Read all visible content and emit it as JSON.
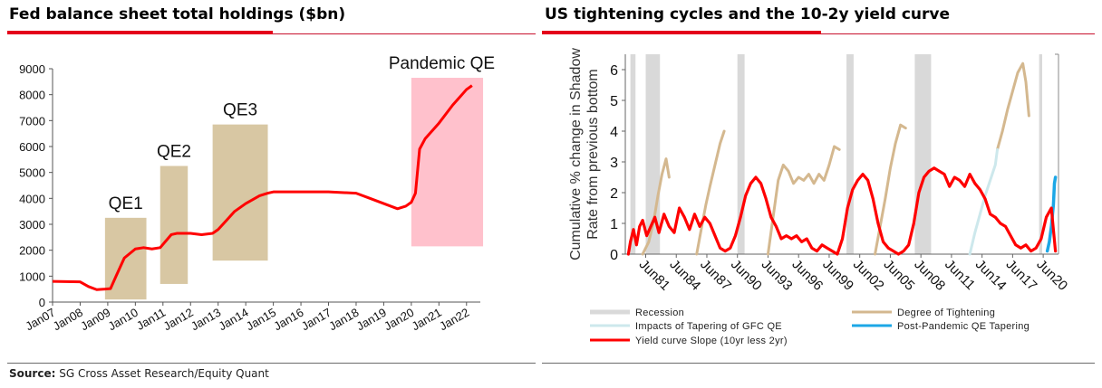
{
  "left_panel": {
    "title": "Fed balance sheet total holdings ($bn)"
  },
  "right_panel": {
    "title": "US tightening cycles and the 10-2y yield curve"
  },
  "source": {
    "label": "Source:",
    "text": "SG Cross Asset Research/Equity Quant"
  },
  "colors": {
    "accent": "#e4001b",
    "line_red": "#ff0000",
    "qe_box": "#d8c7a3",
    "pandemic_box": "#ffc1cc",
    "recession": "#d9d9d9",
    "tightening": "#d4b88f",
    "gfc_taper": "#cde8ec",
    "post_taper": "#1ca7e6"
  },
  "chart_data": [
    {
      "type": "line",
      "title": "Fed balance sheet total holdings ($bn)",
      "xlabel": "",
      "ylabel": "",
      "xlim": [
        2007,
        2022.5
      ],
      "ylim": [
        0,
        9000
      ],
      "yticks": [
        0,
        1000,
        2000,
        3000,
        4000,
        5000,
        6000,
        7000,
        8000,
        9000
      ],
      "ytick_labels": [
        "0",
        "1000",
        "2000",
        "3000",
        "4000",
        "5000",
        "6000",
        "7000",
        "8000",
        "9000"
      ],
      "xticks": [
        2007,
        2008,
        2009,
        2010,
        2011,
        2012,
        2013,
        2014,
        2015,
        2016,
        2017,
        2018,
        2019,
        2020,
        2021,
        2022
      ],
      "xtick_labels": [
        "Jan07",
        "Jan08",
        "Jan09",
        "Jan10",
        "Jan11",
        "Jan12",
        "Jan13",
        "Jan14",
        "Jan15",
        "Jan16",
        "Jan17",
        "Jan18",
        "Jan19",
        "Jan20",
        "Jan21",
        "Jan22"
      ],
      "series": [
        {
          "name": "Fed total holdings",
          "x": [
            2007,
            2008.0,
            2008.3,
            2008.6,
            2008.9,
            2009.1,
            2009.3,
            2009.6,
            2010.0,
            2010.3,
            2010.6,
            2010.9,
            2011.1,
            2011.3,
            2011.5,
            2011.7,
            2012.0,
            2012.4,
            2012.8,
            2013.0,
            2013.3,
            2013.6,
            2014.0,
            2014.5,
            2014.8,
            2015.0,
            2016.0,
            2017.0,
            2018.0,
            2018.5,
            2019.0,
            2019.5,
            2019.8,
            2020.0,
            2020.15,
            2020.3,
            2020.5,
            2021.0,
            2021.5,
            2022.0,
            2022.2
          ],
          "values": [
            800,
            780,
            600,
            480,
            500,
            520,
            1000,
            1700,
            2050,
            2100,
            2050,
            2100,
            2350,
            2600,
            2650,
            2650,
            2650,
            2600,
            2650,
            2800,
            3150,
            3500,
            3800,
            4100,
            4200,
            4250,
            4250,
            4250,
            4200,
            4000,
            3800,
            3600,
            3700,
            3850,
            4200,
            5900,
            6300,
            6900,
            7600,
            8200,
            8350
          ]
        }
      ],
      "annotations": [
        {
          "label": "QE1",
          "x_range": [
            2008.9,
            2010.4
          ],
          "y_range": [
            100,
            3250
          ]
        },
        {
          "label": "QE2",
          "x_range": [
            2010.9,
            2011.9
          ],
          "y_range": [
            700,
            5250
          ]
        },
        {
          "label": "QE3",
          "x_range": [
            2012.8,
            2014.8
          ],
          "y_range": [
            1600,
            6850
          ]
        },
        {
          "label": "Pandemic QE",
          "x_range": [
            2020.0,
            2022.6
          ],
          "y_range": [
            2150,
            8650
          ]
        }
      ]
    },
    {
      "type": "line",
      "title": "US tightening cycles and the 10-2y yield curve",
      "xlabel": "",
      "ylabel": "Cumulative % change in Shadow Rate from previous bottom",
      "xlim": [
        1979.5,
        2022.0
      ],
      "ylim": [
        0,
        6.5
      ],
      "yticks": [
        0,
        1,
        2,
        3,
        4,
        5,
        6
      ],
      "ytick_labels": [
        "0",
        "1",
        "2",
        "3",
        "4",
        "5",
        "6"
      ],
      "xticks": [
        1981.5,
        1984.5,
        1987.5,
        1990.5,
        1993.5,
        1996.5,
        1999.5,
        2002.5,
        2005.5,
        2008.5,
        2011.5,
        2014.5,
        2017.5,
        2020.5
      ],
      "xtick_labels": [
        "Jun81",
        "Jun84",
        "Jun87",
        "Jun90",
        "Jun93",
        "Jun96",
        "Jun99",
        "Jun02",
        "Jun05",
        "Jun08",
        "Jun11",
        "Jun14",
        "Jun17",
        "Jun20"
      ],
      "recessions": [
        [
          1980.0,
          1980.5
        ],
        [
          1981.5,
          1982.9
        ],
        [
          1990.5,
          1991.2
        ],
        [
          2001.2,
          2001.9
        ],
        [
          2007.9,
          2009.5
        ],
        [
          2020.1,
          2020.4
        ]
      ],
      "series": [
        {
          "name": "Degree of Tightening",
          "color": "#d4b88f",
          "segments": [
            {
              "x": [
                1981.2,
                1981.8,
                1982.3,
                1982.7,
                1983.1,
                1983.5,
                1983.8
              ],
              "values": [
                0.0,
                0.4,
                1.1,
                1.9,
                2.6,
                3.1,
                2.5
              ]
            },
            {
              "x": [
                1986.5,
                1987.0,
                1987.4,
                1987.8,
                1988.3,
                1988.8,
                1989.2
              ],
              "values": [
                0.0,
                0.9,
                1.6,
                2.2,
                2.9,
                3.6,
                4.0
              ]
            },
            {
              "x": [
                1993.5,
                1994.0,
                1994.5,
                1995.0,
                1995.5,
                1996.0,
                1996.5,
                1997.0,
                1997.5,
                1998.0,
                1998.5,
                1999.0,
                1999.5,
                2000.0,
                2000.5
              ],
              "values": [
                0.0,
                1.2,
                2.4,
                2.9,
                2.7,
                2.3,
                2.5,
                2.4,
                2.6,
                2.3,
                2.6,
                2.4,
                2.9,
                3.5,
                3.4
              ]
            },
            {
              "x": [
                2004.0,
                2004.5,
                2005.0,
                2005.5,
                2006.0,
                2006.5,
                2007.0
              ],
              "values": [
                0.0,
                0.9,
                1.8,
                2.8,
                3.6,
                4.2,
                4.1
              ]
            },
            {
              "x": [
                2016.0,
                2016.5,
                2017.0,
                2017.5,
                2018.0,
                2018.5,
                2018.8,
                2019.1
              ],
              "values": [
                3.4,
                4.0,
                4.7,
                5.3,
                5.9,
                6.2,
                5.6,
                4.5
              ]
            }
          ]
        },
        {
          "name": "Impacts of Tapering of GFC QE",
          "color": "#cde8ec",
          "segments": [
            {
              "x": [
                2013.3,
                2013.8,
                2014.3,
                2014.8,
                2015.3,
                2015.8,
                2016.0
              ],
              "values": [
                0.0,
                0.7,
                1.3,
                1.9,
                2.4,
                2.9,
                3.4
              ]
            }
          ]
        },
        {
          "name": "Post-Pandemic QE Tapering",
          "color": "#1ca7e6",
          "segments": [
            {
              "x": [
                2020.9,
                2021.1,
                2021.3,
                2021.5,
                2021.6,
                2021.7
              ],
              "values": [
                0.1,
                0.4,
                0.9,
                1.6,
                2.3,
                2.5
              ]
            }
          ]
        },
        {
          "name": "Yield curve Slope (10yr less 2yr)",
          "color": "#ff0000",
          "segments": [
            {
              "x": [
                1979.8,
                1980.0,
                1980.3,
                1980.6,
                1980.9,
                1981.2,
                1981.6,
                1982.0,
                1982.4,
                1982.8,
                1983.3,
                1983.8,
                1984.3,
                1984.8,
                1985.3,
                1985.8,
                1986.3,
                1986.8,
                1987.3,
                1987.8,
                1988.3,
                1988.8,
                1989.3,
                1989.8,
                1990.3,
                1990.8,
                1991.3,
                1991.8,
                1992.3,
                1992.8,
                1993.3,
                1993.8,
                1994.3,
                1994.8,
                1995.3,
                1995.8,
                1996.3,
                1996.8,
                1997.3,
                1997.8,
                1998.3,
                1998.8,
                1999.3,
                1999.8,
                2000.3,
                2000.8,
                2001.3,
                2001.8,
                2002.3,
                2002.8,
                2003.3,
                2003.8,
                2004.3,
                2004.8,
                2005.3,
                2005.8,
                2006.3,
                2006.8,
                2007.3,
                2007.8,
                2008.3,
                2008.8,
                2009.3,
                2009.8,
                2010.3,
                2010.8,
                2011.3,
                2011.8,
                2012.3,
                2012.8,
                2013.3,
                2013.8,
                2014.3,
                2014.8,
                2015.3,
                2015.8,
                2016.3,
                2016.8,
                2017.3,
                2017.8,
                2018.3,
                2018.8,
                2019.3,
                2019.8,
                2020.3,
                2020.8,
                2021.3,
                2021.7
              ],
              "values": [
                0.0,
                0.4,
                0.8,
                0.3,
                0.9,
                1.1,
                0.6,
                0.9,
                1.2,
                0.7,
                1.3,
                0.9,
                0.7,
                1.5,
                1.2,
                0.8,
                1.3,
                0.9,
                1.2,
                1.0,
                0.6,
                0.2,
                0.1,
                0.2,
                0.6,
                1.2,
                1.9,
                2.3,
                2.5,
                2.3,
                1.8,
                1.2,
                0.9,
                0.5,
                0.6,
                0.5,
                0.6,
                0.4,
                0.5,
                0.2,
                0.1,
                0.3,
                0.2,
                0.1,
                0.0,
                0.5,
                1.5,
                2.1,
                2.4,
                2.6,
                2.4,
                1.8,
                1.0,
                0.4,
                0.2,
                0.1,
                0.0,
                0.1,
                0.3,
                1.0,
                2.0,
                2.5,
                2.7,
                2.8,
                2.7,
                2.6,
                2.2,
                2.5,
                2.4,
                2.2,
                2.6,
                2.3,
                2.1,
                1.8,
                1.3,
                1.2,
                1.0,
                0.9,
                0.6,
                0.3,
                0.2,
                0.3,
                0.1,
                0.2,
                0.5,
                1.2,
                1.5,
                0.1
              ]
            }
          ]
        }
      ],
      "legend": [
        {
          "label": "Recession",
          "color": "#d9d9d9"
        },
        {
          "label": "Degree of Tightening",
          "color": "#d4b88f"
        },
        {
          "label": "Impacts of Tapering of GFC QE",
          "color": "#cde8ec"
        },
        {
          "label": "Post-Pandemic QE Tapering",
          "color": "#1ca7e6"
        },
        {
          "label": "Yield curve Slope (10yr less 2yr)",
          "color": "#ff0000"
        }
      ],
      "legend_position": "bottom"
    }
  ]
}
